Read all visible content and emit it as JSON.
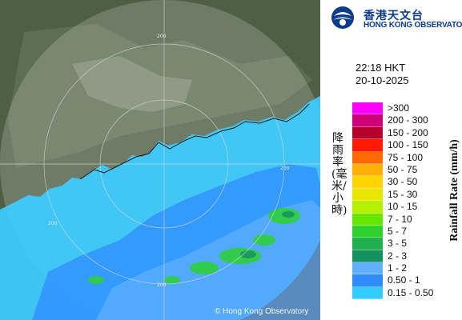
{
  "header": {
    "org_name_cn": "香港天文台",
    "org_name_en": "HONG KONG OBSERVATORY"
  },
  "timestamp": {
    "time": "22:18 HKT",
    "date": "20-10-2025"
  },
  "legend": {
    "title_en": "Rainfall Rate (mm/h)",
    "title_cn": "降雨率(毫米/小時)",
    "classes": [
      {
        "label": ">300",
        "color": "#ff00ff"
      },
      {
        "label": "200 - 300",
        "color": "#cc0077"
      },
      {
        "label": "150 - 200",
        "color": "#b4002a"
      },
      {
        "label": "100 - 150",
        "color": "#ff1a00"
      },
      {
        "label": "75 - 100",
        "color": "#ff6a00"
      },
      {
        "label": "50 - 75",
        "color": "#ffb000"
      },
      {
        "label": "30 - 50",
        "color": "#ffd400"
      },
      {
        "label": "15 - 30",
        "color": "#e6e600"
      },
      {
        "label": "10 - 15",
        "color": "#b4f000"
      },
      {
        "label": "7 - 10",
        "color": "#66e600"
      },
      {
        "label": "5 - 7",
        "color": "#2ed12e"
      },
      {
        "label": "3 - 5",
        "color": "#20b050"
      },
      {
        "label": "2 - 3",
        "color": "#159060"
      },
      {
        "label": "1 - 2",
        "color": "#60b0ff"
      },
      {
        "label": "0.50 - 1",
        "color": "#2f8cff"
      },
      {
        "label": "0.15 - 0.50",
        "color": "#33ccff"
      }
    ]
  },
  "map": {
    "range_labels": [
      "200",
      "200",
      "200",
      "200"
    ],
    "copyright": "© Hong Kong Observatory"
  }
}
